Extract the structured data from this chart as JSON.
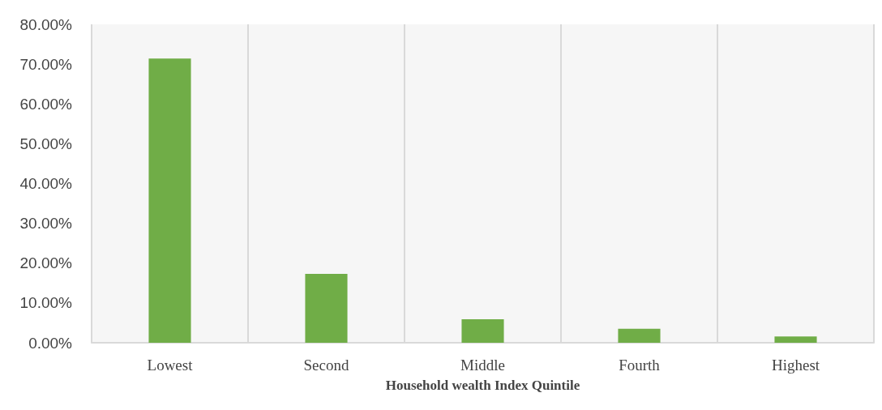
{
  "chart_data": {
    "type": "bar",
    "xlabel": "Household wealth Index Quintile",
    "categories": [
      "Lowest",
      "Second",
      "Middle",
      "Fourth",
      "Highest"
    ],
    "values": [
      71.4,
      17.3,
      5.9,
      3.5,
      1.6
    ],
    "color": "#70ad47",
    "ylim": [
      0,
      80
    ],
    "yticks": [
      {
        "value": 0,
        "label": "0.00%"
      },
      {
        "value": 10,
        "label": "10.00%"
      },
      {
        "value": 20,
        "label": "20.00%"
      },
      {
        "value": 30,
        "label": "30.00%"
      },
      {
        "value": 40,
        "label": "40.00%"
      },
      {
        "value": 50,
        "label": "50.00%"
      },
      {
        "value": 60,
        "label": "60.00%"
      },
      {
        "value": 70,
        "label": "70.00%"
      },
      {
        "value": 80,
        "label": "80.00%"
      }
    ],
    "grid": "x"
  }
}
